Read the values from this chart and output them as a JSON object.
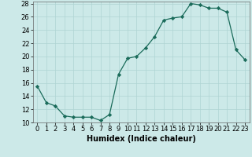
{
  "x": [
    0,
    1,
    2,
    3,
    4,
    5,
    6,
    7,
    8,
    9,
    10,
    11,
    12,
    13,
    14,
    15,
    16,
    17,
    18,
    19,
    20,
    21,
    22,
    23
  ],
  "y": [
    15.5,
    13.0,
    12.5,
    11.0,
    10.8,
    10.8,
    10.8,
    10.3,
    11.2,
    17.3,
    19.7,
    20.0,
    21.3,
    23.0,
    25.5,
    25.8,
    26.0,
    28.0,
    27.8,
    27.3,
    27.3,
    26.7,
    21.0,
    19.5
  ],
  "line_color": "#1a6b5a",
  "marker": "D",
  "marker_size": 2.2,
  "bg_color": "#cce9e8",
  "grid_color": "#afd4d3",
  "xlabel": "Humidex (Indice chaleur)",
  "ylim": [
    10,
    28
  ],
  "xlim": [
    -0.5,
    23.5
  ],
  "yticks": [
    10,
    12,
    14,
    16,
    18,
    20,
    22,
    24,
    26,
    28
  ],
  "xticks": [
    0,
    1,
    2,
    3,
    4,
    5,
    6,
    7,
    8,
    9,
    10,
    11,
    12,
    13,
    14,
    15,
    16,
    17,
    18,
    19,
    20,
    21,
    22,
    23
  ],
  "xlabel_fontsize": 7,
  "tick_fontsize": 6,
  "linewidth": 0.9
}
